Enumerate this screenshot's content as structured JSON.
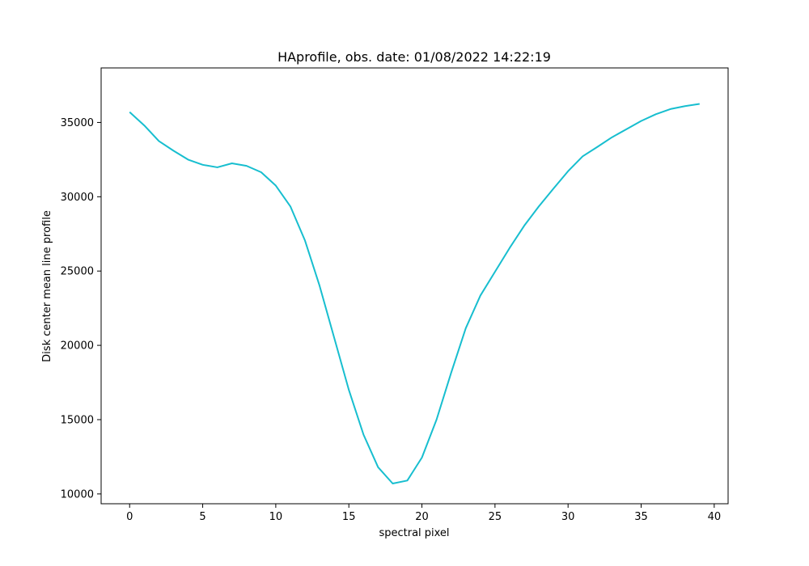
{
  "chart_data": {
    "type": "line",
    "title": "HAprofile, obs. date: 01/08/2022 14:22:19",
    "xlabel": "spectral pixel",
    "ylabel": "Disk center mean line profile",
    "xlim": [
      -1.95,
      40.95
    ],
    "ylim": [
      9340,
      38670
    ],
    "xticks": [
      0,
      5,
      10,
      15,
      20,
      25,
      30,
      35,
      40
    ],
    "yticks": [
      10000,
      15000,
      20000,
      25000,
      30000,
      35000
    ],
    "grid": false,
    "series": [
      {
        "color": "#17becf",
        "x": [
          0,
          1,
          2,
          3,
          4,
          5,
          6,
          7,
          8,
          9,
          10,
          11,
          12,
          13,
          14,
          15,
          16,
          17,
          18,
          19,
          20,
          21,
          22,
          23,
          24,
          25,
          26,
          27,
          28,
          29,
          30,
          31,
          32,
          33,
          34,
          35,
          36,
          37,
          38,
          39
        ],
        "y": [
          35700,
          34800,
          33750,
          33100,
          32500,
          32150,
          31980,
          32250,
          32080,
          31650,
          30750,
          29350,
          27050,
          24000,
          20500,
          17000,
          14000,
          11800,
          10700,
          10900,
          12450,
          15000,
          18150,
          21150,
          23350,
          24950,
          26550,
          28050,
          29350,
          30550,
          31720,
          32720,
          33350,
          34000,
          34550,
          35100,
          35550,
          35900,
          36100,
          36250
        ]
      }
    ]
  }
}
